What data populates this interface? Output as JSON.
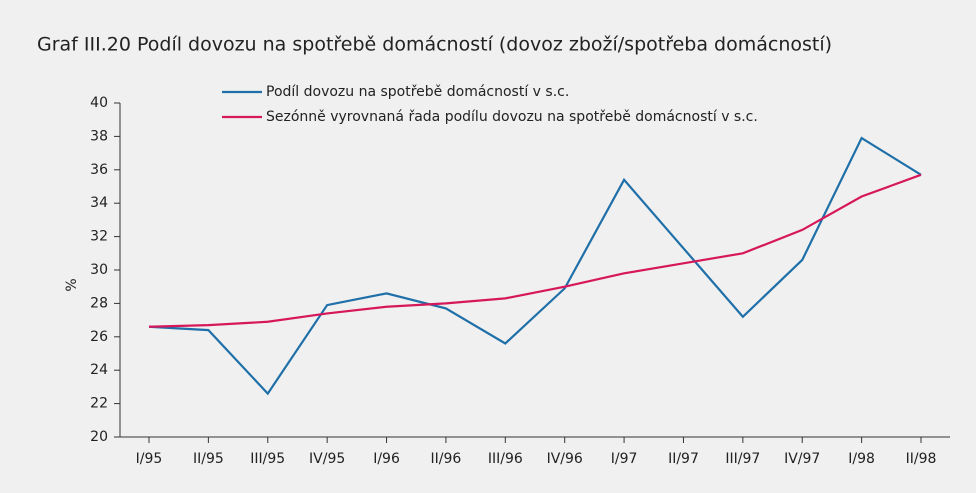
{
  "chart_data": {
    "type": "line",
    "title": "Graf III.20  Podíl dovozu na spotřebě domácností (dovoz zboží/spotřeba domácností)",
    "y_label": "%",
    "categories": [
      "I/95",
      "II/95",
      "III/95",
      "IV/95",
      "I/96",
      "II/96",
      "III/96",
      "IV/96",
      "I/97",
      "II/97",
      "III/97",
      "IV/97",
      "I/98",
      "II/98"
    ],
    "series": [
      {
        "name": "Podíl dovozu na spotřebě domácností v s.c.",
        "color": "#1f6fa8",
        "values": [
          26.6,
          26.4,
          22.6,
          27.9,
          28.6,
          27.7,
          25.6,
          28.9,
          35.4,
          31.3,
          27.2,
          30.6,
          37.9,
          35.7
        ]
      },
      {
        "name": "Sezónně vyrovnaná řada podílu dovozu na spotřebě domácností v s.c.",
        "color": "#d6185a",
        "values": [
          26.6,
          26.7,
          26.9,
          27.4,
          27.8,
          28.0,
          28.3,
          29.0,
          29.8,
          30.4,
          31.0,
          32.4,
          34.4,
          35.7
        ]
      }
    ],
    "ylim": [
      20,
      40
    ],
    "yticks": [
      20,
      22,
      24,
      26,
      28,
      30,
      32,
      34,
      36,
      38,
      40
    ]
  }
}
